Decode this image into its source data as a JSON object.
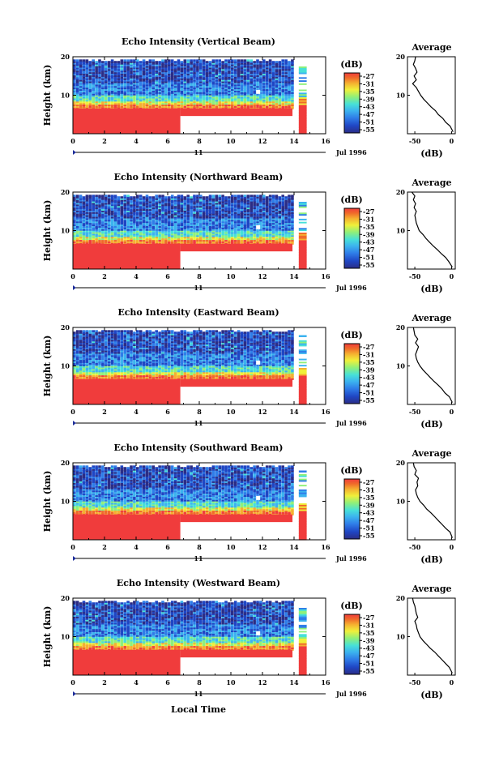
{
  "panels": [
    {
      "title": "Echo Intensity (Vertical Beam)"
    },
    {
      "title": "Echo Intensity (Northward Beam)"
    },
    {
      "title": "Echo Intensity (Eastward Beam)"
    },
    {
      "title": "Echo Intensity (Southward Beam)"
    },
    {
      "title": "Echo Intensity (Westward Beam)"
    }
  ],
  "labels": {
    "ylabel": "Height (km)",
    "average_title": "Average",
    "average_unit": "(dB)",
    "colorbar_unit": "(dB)",
    "day_label": "11",
    "date_label": "Jul 1996",
    "xlabel": "Local Time"
  },
  "chart_data": {
    "type": "heatmap",
    "x_ticks": [
      "0",
      "2",
      "4",
      "6",
      "8",
      "10",
      "12",
      "14",
      "16"
    ],
    "x_range": [
      0,
      16
    ],
    "y_ticks": [
      "10",
      "20"
    ],
    "y_range": [
      0,
      20
    ],
    "colorbar_ticks": [
      "-27",
      "-31",
      "-35",
      "-39",
      "-43",
      "-47",
      "-51",
      "-55"
    ],
    "colorbar_colors": [
      "#2b2d86",
      "#1f46c4",
      "#2f7de8",
      "#3cb3ef",
      "#47e0d8",
      "#8ff07a",
      "#f0f03a",
      "#f5b030",
      "#f06a2a",
      "#f03c3c"
    ],
    "average_x_ticks": [
      "-50",
      "0"
    ],
    "average_x_range": [
      -60,
      5
    ],
    "average_profiles": [
      {
        "height": [
          0.5,
          2,
          3,
          4,
          5,
          6,
          7,
          8,
          9,
          10,
          11,
          12,
          13,
          14,
          15,
          16,
          17,
          18,
          19,
          20
        ],
        "db": [
          2,
          -2,
          -8,
          -12,
          -18,
          -22,
          -28,
          -33,
          -38,
          -42,
          -45,
          -48,
          -53,
          -48,
          -51,
          -47,
          -49,
          -52,
          -50,
          -49
        ]
      },
      {
        "height": [
          0.5,
          2,
          3,
          4,
          5,
          6,
          7,
          8,
          9,
          10,
          11,
          12,
          13,
          14,
          15,
          16,
          17,
          18,
          19,
          20
        ],
        "db": [
          1,
          -4,
          -8,
          -14,
          -19,
          -25,
          -30,
          -35,
          -39,
          -44,
          -46,
          -48,
          -49,
          -50,
          -48,
          -51,
          -49,
          -52,
          -50,
          -54
        ]
      },
      {
        "height": [
          0.5,
          2,
          3,
          4,
          5,
          6,
          7,
          8,
          9,
          10,
          11,
          12,
          13,
          14,
          15,
          16,
          17,
          18,
          19,
          20
        ],
        "db": [
          1,
          -3,
          -9,
          -13,
          -18,
          -24,
          -29,
          -34,
          -39,
          -43,
          -46,
          -48,
          -49,
          -47,
          -45,
          -49,
          -46,
          -50,
          -51,
          -52
        ]
      },
      {
        "height": [
          0.5,
          2,
          3,
          4,
          5,
          6,
          7,
          8,
          9,
          10,
          11,
          12,
          13,
          14,
          15,
          16,
          17,
          18,
          19,
          20
        ],
        "db": [
          1,
          -2,
          -8,
          -13,
          -18,
          -23,
          -28,
          -34,
          -38,
          -43,
          -46,
          -48,
          -49,
          -46,
          -47,
          -45,
          -50,
          -48,
          -51,
          -52
        ]
      },
      {
        "height": [
          0.5,
          2,
          3,
          4,
          5,
          6,
          7,
          8,
          9,
          10,
          11,
          12,
          13,
          14,
          15,
          16,
          17,
          18,
          19,
          20
        ],
        "db": [
          1,
          -3,
          -8,
          -13,
          -18,
          -23,
          -29,
          -34,
          -39,
          -43,
          -45,
          -47,
          -48,
          -50,
          -46,
          -48,
          -49,
          -50,
          -52,
          -53
        ]
      }
    ]
  }
}
